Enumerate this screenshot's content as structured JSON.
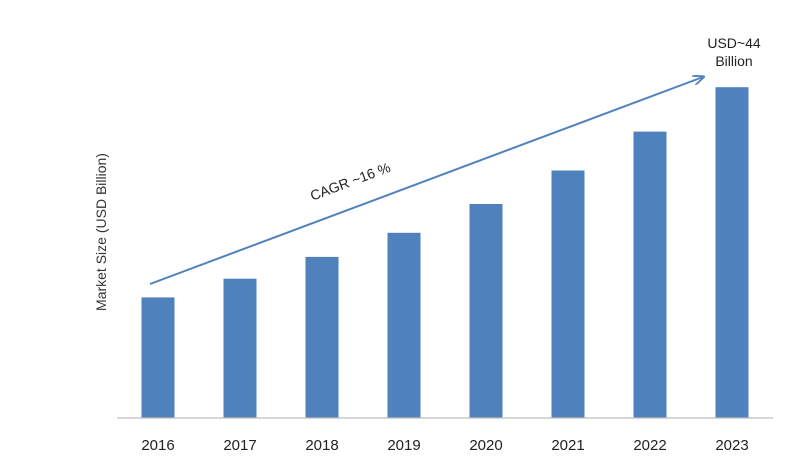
{
  "chart_data": {
    "type": "bar",
    "title": "",
    "xlabel": "",
    "ylabel": "Market Size (USD Billion)",
    "categories": [
      "2016",
      "2017",
      "2018",
      "2019",
      "2020",
      "2021",
      "2022",
      "2023"
    ],
    "values": [
      15.5,
      17.9,
      20.7,
      23.8,
      27.5,
      31.8,
      36.8,
      42.5
    ],
    "ylim": [
      0,
      46
    ],
    "grid": false,
    "legend": "none",
    "bar_color": "#4F81BD",
    "annotations": {
      "cagr": "CAGR ~16 %",
      "final_value_line1": "USD~44",
      "final_value_line2": "Billion"
    }
  }
}
